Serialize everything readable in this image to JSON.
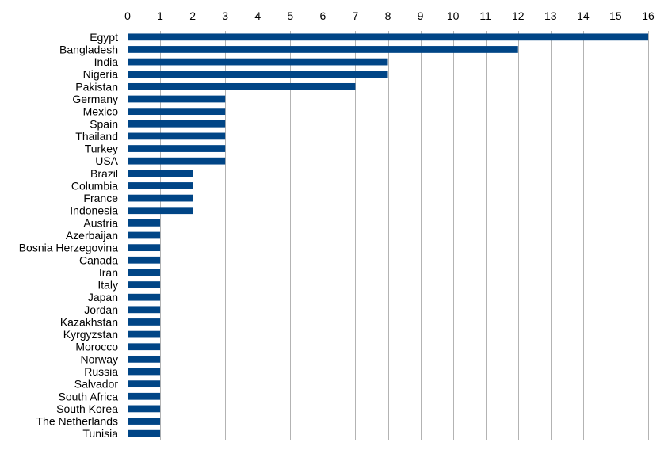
{
  "chart_data": {
    "type": "bar",
    "orientation": "horizontal",
    "title": "",
    "xlabel": "",
    "ylabel": "",
    "xlim": [
      0,
      16
    ],
    "x_ticks": [
      0,
      1,
      2,
      3,
      4,
      5,
      6,
      7,
      8,
      9,
      10,
      11,
      12,
      13,
      14,
      15,
      16
    ],
    "x_axis_position": "top",
    "grid": "vertical",
    "legend": "none",
    "bar_color": "#004586",
    "categories": [
      "Egypt",
      "Bangladesh",
      "India",
      "Nigeria",
      "Pakistan",
      "Germany",
      "Mexico",
      "Spain",
      "Thailand",
      "Turkey",
      "USA",
      "Brazil",
      "Columbia",
      "France",
      "Indonesia",
      "Austria",
      "Azerbaijan",
      "Bosnia Herzegovina",
      "Canada",
      "Iran",
      "Italy",
      "Japan",
      "Jordan",
      "Kazakhstan",
      "Kyrgyzstan",
      "Morocco",
      "Norway",
      "Russia",
      "Salvador",
      "South Africa",
      "South Korea",
      "The Netherlands",
      "Tunisia"
    ],
    "values": [
      16,
      12,
      8,
      8,
      7,
      3,
      3,
      3,
      3,
      3,
      3,
      2,
      2,
      2,
      2,
      1,
      1,
      1,
      1,
      1,
      1,
      1,
      1,
      1,
      1,
      1,
      1,
      1,
      1,
      1,
      1,
      1,
      1
    ]
  }
}
